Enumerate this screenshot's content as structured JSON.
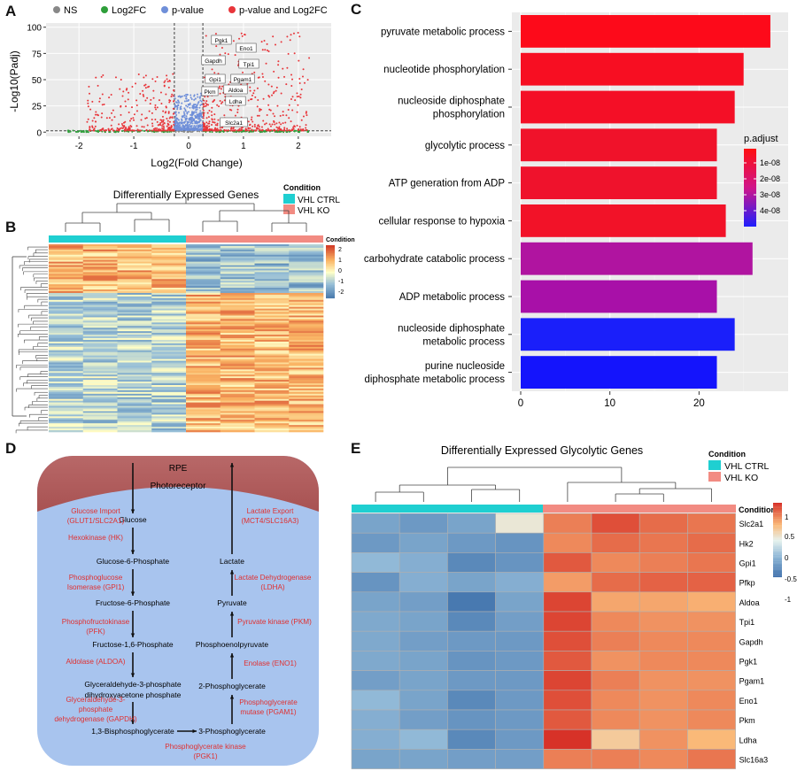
{
  "panel_labels": [
    "A",
    "B",
    "C",
    "D",
    "E"
  ],
  "panel_a": {
    "legend": [
      "NS",
      "Log2FC",
      "p-value",
      "p-value and Log2FC"
    ],
    "legend_colors": [
      "#888888",
      "#2e9e3a",
      "#6f8fd9",
      "#e8353a"
    ],
    "ylabel": "-Log10(Padj)",
    "xlabel": "Log2(Fold Change)",
    "x_ticks": [
      "-2",
      "-1",
      "0",
      "1",
      "2"
    ],
    "y_ticks": [
      "0",
      "25",
      "50",
      "75",
      "100"
    ],
    "gene_labels": [
      "Pgk1",
      "Eno1",
      "Gapdh",
      "Tpi1",
      "Gpi1",
      "Pgam1",
      "Pkm",
      "Aldoa",
      "Ldha",
      "Slc2a1"
    ]
  },
  "panel_b": {
    "title": "Differentially Expressed Genes",
    "legend_title": "Condition",
    "groups": [
      "VHL CTRL",
      "VHL KO"
    ],
    "group_colors": [
      "#1fcfd1",
      "#f28b82"
    ],
    "scale_title": "Condition",
    "scale_ticks": [
      "2",
      "1",
      "0",
      "-1",
      "-2"
    ]
  },
  "chart_data": {
    "type": "bar",
    "categories": [
      "pyruvate metabolic process",
      "nucleotide phosphorylation",
      "nucleoside diphosphate phosphorylation",
      "glycolytic process",
      "ATP generation from ADP",
      "cellular response to hypoxia",
      "carbohydrate catabolic process",
      "ADP metabolic process",
      "nucleoside diphosphate metabolic process",
      "purine nucleoside diphosphate metabolic process"
    ],
    "category_lines": [
      [
        "pyruvate metabolic process"
      ],
      [
        "nucleotide phosphorylation"
      ],
      [
        "nucleoside diphosphate",
        "phosphorylation"
      ],
      [
        "glycolytic process"
      ],
      [
        "ATP generation from ADP"
      ],
      [
        "cellular response to hypoxia"
      ],
      [
        "carbohydrate catabolic process"
      ],
      [
        "ADP metabolic process"
      ],
      [
        "nucleoside diphosphate",
        "metabolic process"
      ],
      [
        "purine nucleoside",
        "diphosphate metabolic process"
      ]
    ],
    "values": [
      28,
      25,
      24,
      22,
      22,
      23,
      26,
      22,
      24,
      22
    ],
    "colors": [
      "#fd0a1a",
      "#f70e22",
      "#f40f26",
      "#f0122a",
      "#ef122c",
      "#f21228",
      "#b014a0",
      "#a810a8",
      "#1a1ffa",
      "#1414fc"
    ],
    "xlim": [
      0,
      29
    ],
    "x_ticks": [
      0,
      10,
      20
    ],
    "legend_title": "p.adjust",
    "legend_ticks": [
      "1e-08",
      "2e-08",
      "3e-08",
      "4e-08"
    ]
  },
  "panel_d": {
    "rpe": "RPE",
    "photoreceptor": "Photoreceptor",
    "metabolites_left": [
      "Glucose",
      "Glucose-6-Phosphate",
      "Fructose-6-Phosphate",
      "Fructose-1,6-Phosphate",
      "Glyceraldehyde-3-phosphate",
      "dihydroxyacetone phosphate",
      "1,3-Bisphosphoglycerate"
    ],
    "metabolites_right": [
      "Lactate",
      "Pyruvate",
      "Phosphoenolpyruvate",
      "2-Phosphoglycerate",
      "3-Phosphoglycerate"
    ],
    "enzymes_left": [
      [
        "Glucose Import",
        "(GLUT1/SLC2A1)"
      ],
      [
        "Hexokinase (HK)"
      ],
      [
        "Phosphoglucose",
        "Isomerase (GPI1)"
      ],
      [
        "Phosphofructokinase",
        "(PFK)"
      ],
      [
        "Aldolase (ALDOA)"
      ],
      [
        "Glyceraldehyde-3-",
        "phosphate",
        "dehydrogenase (GAPDH)"
      ]
    ],
    "enzymes_right": [
      [
        "Lactate Export",
        "(MCT4/SLC16A3)"
      ],
      [
        "Lactate Dehydrogenase",
        "(LDHA)"
      ],
      [
        "Pyruvate kinase (PKM)"
      ],
      [
        "Enolase (ENO1)"
      ],
      [
        "Phosphoglycerate",
        "mutase (PGAM1)"
      ]
    ],
    "enzyme_bottom": "Phosphoglycerate kinase",
    "enzyme_bottom_2": "(PGK1)"
  },
  "panel_e": {
    "title": "Differentially Expressed Glycolytic Genes",
    "legend_title": "Condition",
    "groups": [
      "VHL CTRL",
      "VHL KO"
    ],
    "scale_title": "Condition",
    "scale_ticks": [
      "1",
      "0.5",
      "0",
      "-0.5",
      "-1"
    ],
    "genes": [
      "Slc2a1",
      "Hk2",
      "Gpi1",
      "Pfkp",
      "Aldoa",
      "Tpi1",
      "Gapdh",
      "Pgk1",
      "Pgam1",
      "Eno1",
      "Pkm",
      "Ldha",
      "Slc16a3"
    ],
    "values": [
      [
        -0.7,
        -0.8,
        -0.7,
        0.1,
        0.8,
        1.05,
        0.9,
        0.85
      ],
      [
        -0.8,
        -0.7,
        -0.8,
        -0.85,
        0.75,
        0.9,
        0.85,
        0.9
      ],
      [
        -0.5,
        -0.6,
        -0.95,
        -0.85,
        1.0,
        0.75,
        0.8,
        0.85
      ],
      [
        -0.85,
        -0.6,
        -0.7,
        -0.6,
        0.65,
        0.9,
        0.95,
        0.95
      ],
      [
        -0.7,
        -0.75,
        -1.1,
        -0.7,
        1.1,
        0.6,
        0.6,
        0.55
      ],
      [
        -0.65,
        -0.7,
        -0.95,
        -0.75,
        1.1,
        0.75,
        0.7,
        0.7
      ],
      [
        -0.65,
        -0.75,
        -0.8,
        -0.8,
        1.05,
        0.8,
        0.75,
        0.75
      ],
      [
        -0.65,
        -0.7,
        -0.85,
        -0.8,
        1.0,
        0.7,
        0.75,
        0.75
      ],
      [
        -0.75,
        -0.7,
        -0.8,
        -0.8,
        1.1,
        0.8,
        0.7,
        0.7
      ],
      [
        -0.5,
        -0.7,
        -0.95,
        -0.8,
        1.05,
        0.75,
        0.7,
        0.75
      ],
      [
        -0.6,
        -0.75,
        -0.85,
        -0.8,
        1.0,
        0.75,
        0.7,
        0.75
      ],
      [
        -0.6,
        -0.5,
        -0.95,
        -0.8,
        1.2,
        0.35,
        0.7,
        0.5
      ],
      [
        -0.7,
        -0.7,
        -0.75,
        -0.75,
        0.8,
        0.8,
        0.75,
        0.85
      ]
    ]
  }
}
